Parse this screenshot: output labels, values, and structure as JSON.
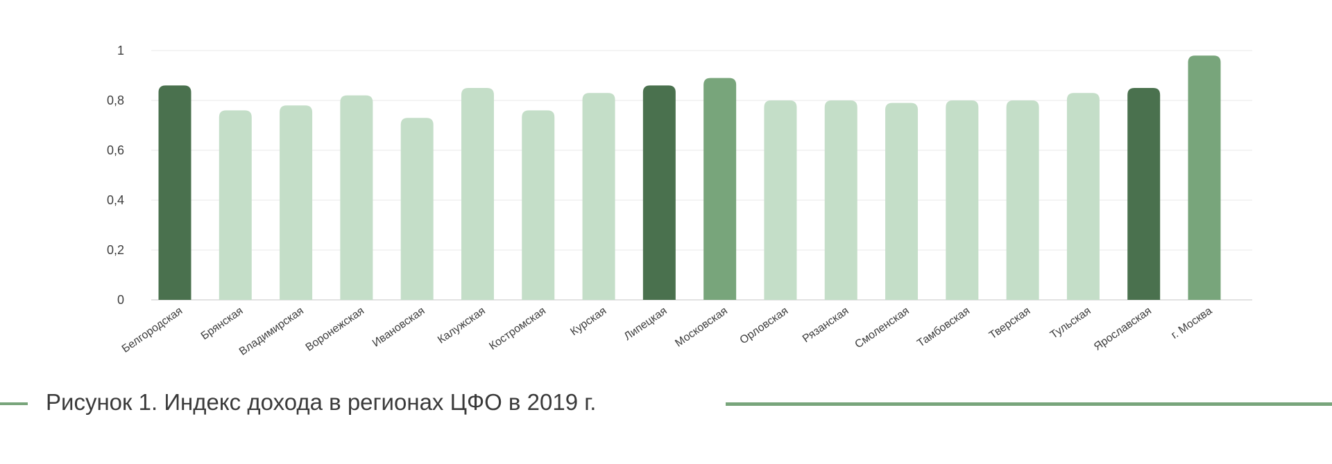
{
  "chart_data": {
    "type": "bar",
    "title": "",
    "xlabel": "",
    "ylabel": "",
    "ylim": [
      0,
      1
    ],
    "y_ticks": [
      "0",
      "0,2",
      "0,4",
      "0,6",
      "0,8",
      "1"
    ],
    "y_tick_values": [
      0,
      0.2,
      0.4,
      0.6,
      0.8,
      1
    ],
    "grid": true,
    "categories": [
      "Белгородская",
      "Брянская",
      "Владимирская",
      "Воронежская",
      "Ивановская",
      "Калужская",
      "Костромская",
      "Курская",
      "Липецкая",
      "Московская",
      "Орловская",
      "Рязанская",
      "Смоленская",
      "Тамбовская",
      "Тверская",
      "Тульская",
      "Ярославская",
      "г. Москва"
    ],
    "values": [
      0.86,
      0.76,
      0.78,
      0.82,
      0.73,
      0.85,
      0.76,
      0.83,
      0.86,
      0.89,
      0.8,
      0.8,
      0.79,
      0.8,
      0.8,
      0.83,
      0.85,
      0.98
    ],
    "bar_colors": [
      "#4a714e",
      "#c4dec8",
      "#c4dec8",
      "#c4dec8",
      "#c4dec8",
      "#c4dec8",
      "#c4dec8",
      "#c4dec8",
      "#4a714e",
      "#78a57b",
      "#c4dec8",
      "#c4dec8",
      "#c4dec8",
      "#c4dec8",
      "#c4dec8",
      "#c4dec8",
      "#4a714e",
      "#78a57b"
    ],
    "gridline_color": "#e9e9e9",
    "baseline_color": "#e2e2e2"
  },
  "caption": {
    "text": "Рисунок 1. Индекс дохода в регионах ЦФО в 2019 г.",
    "line_color": "#78a57b"
  }
}
